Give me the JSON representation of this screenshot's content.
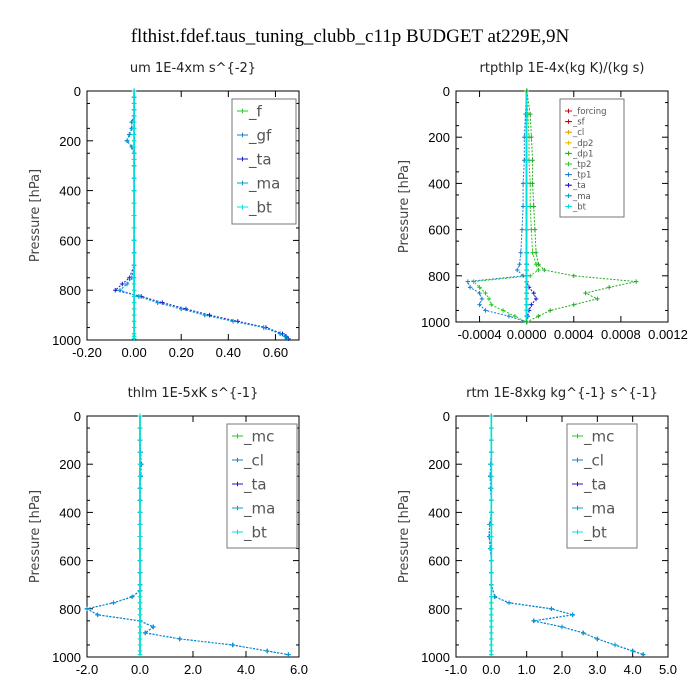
{
  "figure_title": "flthist.fdef.taus_tuning_clubb_c11p  BUDGET at229E,9N",
  "colors": {
    "forcing": "#cc0000",
    "sf": "#cc0000",
    "cl": "#e6a000",
    "dp2": "#e6c300",
    "dp1": "#22aa22",
    "tp2": "#22cc22",
    "tp1": "#1a7fcf",
    "ta": "#1a1ad0",
    "ma": "#00a0d0",
    "bt": "#00e0e0",
    "f": "#22cc22",
    "gf": "#1a7fcf",
    "mc": "#22cc22"
  },
  "chart_data": [
    {
      "type": "line",
      "title": "um   1E-4xm s^{-2}",
      "ylabel": "Pressure [hPa]",
      "xlim": [
        -0.2,
        0.7
      ],
      "ylim": [
        1000,
        0
      ],
      "xticks": [
        -0.2,
        0.0,
        0.2,
        0.4,
        0.6
      ],
      "xtick_labels": [
        "-0.20",
        "0.00",
        "0.20",
        "0.40",
        "0.60"
      ],
      "yticks": [
        0,
        200,
        400,
        600,
        800,
        1000
      ],
      "ytick_labels": [
        "0",
        "200",
        "400",
        "600",
        "800",
        "1000"
      ],
      "legend_location": "top-right",
      "pressure": [
        0,
        25,
        50,
        75,
        100,
        125,
        150,
        175,
        200,
        225,
        250,
        275,
        300,
        350,
        400,
        450,
        500,
        550,
        600,
        650,
        700,
        750,
        775,
        800,
        825,
        850,
        875,
        900,
        925,
        950,
        975,
        985,
        995
      ],
      "series": [
        {
          "name": "_f",
          "key": "f",
          "values": [
            0,
            0,
            0,
            0,
            0,
            0,
            0,
            0,
            0,
            0,
            0,
            0,
            0,
            0,
            0,
            0,
            0,
            0,
            0,
            0,
            0,
            0,
            0,
            0,
            0,
            0,
            0,
            0,
            0,
            0,
            0,
            0,
            0
          ]
        },
        {
          "name": "_gf",
          "key": "gf",
          "values": [
            0.0,
            0.0,
            0.0,
            0.0,
            0.0,
            -0.01,
            -0.01,
            -0.02,
            -0.03,
            -0.01,
            0.0,
            0.0,
            0.0,
            0.0,
            0.0,
            0.0,
            0.0,
            0.0,
            0.0,
            0.0,
            0.0,
            -0.01,
            -0.03,
            -0.06,
            0.02,
            0.1,
            0.2,
            0.3,
            0.42,
            0.55,
            0.62,
            0.64,
            0.65
          ]
        },
        {
          "name": "_ta",
          "key": "ta",
          "values": [
            0.0,
            0.0,
            0.0,
            0.0,
            0.0,
            -0.01,
            -0.01,
            -0.02,
            -0.03,
            -0.01,
            0.0,
            0.0,
            0.0,
            0.0,
            0.0,
            0.0,
            0.0,
            0.0,
            0.0,
            0.0,
            0.0,
            -0.02,
            -0.05,
            -0.08,
            0.03,
            0.12,
            0.22,
            0.32,
            0.44,
            0.56,
            0.63,
            0.645,
            0.655
          ]
        },
        {
          "name": "_ma",
          "key": "ma",
          "values": [
            0.0,
            0.0,
            0.0,
            0.0,
            0.0,
            -0.01,
            -0.01,
            -0.02,
            -0.03,
            -0.01,
            0.0,
            0.0,
            0.0,
            0.0,
            0.0,
            0.0,
            0.0,
            0.0,
            0.0,
            0.0,
            0.0,
            -0.01,
            -0.03,
            -0.06,
            0.02,
            0.1,
            0.2,
            0.3,
            0.42,
            0.55,
            0.62,
            0.64,
            0.65
          ]
        },
        {
          "name": "_bt",
          "key": "bt",
          "values": [
            0,
            0,
            0,
            0,
            0,
            0,
            0,
            0,
            0,
            0,
            0,
            0,
            0,
            0,
            0,
            0,
            0,
            0,
            0,
            0,
            0,
            0,
            0,
            0,
            0,
            0,
            0,
            0,
            0,
            0,
            0,
            0,
            0
          ]
        }
      ]
    },
    {
      "type": "line",
      "title": "rtpthlp   1E-4x(kg K)/(kg s)",
      "ylabel": "Pressure [hPa]",
      "xlim": [
        -0.0006,
        0.0012
      ],
      "ylim": [
        1000,
        0
      ],
      "xticks": [
        -0.0004,
        0.0,
        0.0004,
        0.0008,
        0.0012
      ],
      "xtick_labels": [
        "-0.0004",
        "0.0000",
        "0.0004",
        "0.0008",
        "0.0012"
      ],
      "yticks": [
        0,
        200,
        400,
        600,
        800,
        1000
      ],
      "ytick_labels": [
        "0",
        "200",
        "400",
        "600",
        "800",
        "1000"
      ],
      "legend_location": "top-right",
      "pressure": [
        0,
        100,
        200,
        300,
        400,
        500,
        600,
        700,
        750,
        775,
        800,
        825,
        850,
        875,
        900,
        925,
        950,
        975,
        1000
      ],
      "series": [
        {
          "name": "_forcing",
          "key": "forcing",
          "values": [
            0,
            0,
            0,
            0,
            0,
            0,
            0,
            0,
            0,
            0,
            0,
            0,
            0,
            0,
            0,
            0,
            0,
            0,
            0
          ]
        },
        {
          "name": "_sf",
          "key": "sf",
          "values": [
            0,
            0,
            0,
            0,
            0,
            0,
            0,
            0,
            0,
            0,
            0,
            0,
            0,
            0,
            0,
            0,
            0,
            0,
            0
          ]
        },
        {
          "name": "_cl",
          "key": "cl",
          "values": [
            0,
            0,
            0,
            0,
            0,
            0,
            0,
            0,
            0,
            0,
            0,
            0,
            0,
            0,
            0,
            0,
            0,
            0,
            0
          ]
        },
        {
          "name": "_dp2",
          "key": "dp2",
          "values": [
            0,
            0,
            0,
            0,
            0,
            0,
            0,
            0,
            0,
            0,
            0,
            0,
            0,
            0,
            0,
            0,
            0,
            0,
            0
          ]
        },
        {
          "name": "_dp1",
          "key": "dp1",
          "values": [
            0,
            0,
            0,
            0,
            0,
            0,
            0,
            0,
            0,
            0,
            0,
            0,
            0,
            0,
            0,
            0,
            0,
            0,
            0
          ]
        },
        {
          "name": "_tp2",
          "key": "tp2",
          "values": [
            0.0,
            1e-05,
            2e-05,
            2e-05,
            3e-05,
            3e-05,
            4e-05,
            5e-05,
            8e-05,
            0.0001,
            3e-05,
            -0.00045,
            -0.0004,
            -0.00035,
            -0.00032,
            -0.0003,
            -0.0002,
            -0.0001,
            0.0
          ]
        },
        {
          "name": "_tp1",
          "key": "tp1",
          "values": [
            0.0,
            -1e-05,
            -2e-05,
            -2e-05,
            -3e-05,
            -3e-05,
            -4e-05,
            -5e-05,
            -6e-05,
            -8e-05,
            -3e-05,
            -0.0005,
            -0.00048,
            -0.0004,
            -0.00038,
            -0.0004,
            -0.00035,
            -0.00015,
            0.0
          ]
        },
        {
          "name": "_ta",
          "key": "ta",
          "values": [
            0,
            0,
            0,
            0,
            0,
            0,
            0,
            0,
            0,
            0,
            0,
            0,
            2e-05,
            6e-05,
            8e-05,
            4e-05,
            2e-05,
            1e-05,
            0
          ]
        },
        {
          "name": "_ma",
          "key": "ma",
          "values": [
            0,
            0,
            0,
            0,
            0,
            0,
            0,
            0,
            0,
            0,
            0,
            0,
            0,
            0,
            0,
            0,
            0,
            0,
            0
          ]
        },
        {
          "name": "_bt",
          "key": "bt",
          "values": [
            0,
            0,
            0,
            0,
            0,
            0,
            0,
            0,
            0,
            0,
            0,
            0,
            0,
            0,
            0,
            0,
            0,
            0,
            0
          ]
        },
        {
          "name": "",
          "key": "dp1",
          "values": [
            0.0,
            3e-05,
            4e-05,
            5e-05,
            5e-05,
            6e-05,
            7e-05,
            8e-05,
            0.0001,
            0.00015,
            0.0004,
            0.00093,
            0.0007,
            0.0005,
            0.0006,
            0.0004,
            0.0002,
            0.0001,
            0.0
          ]
        }
      ]
    },
    {
      "type": "line",
      "title": "thlm   1E-5xK s^{-1}",
      "ylabel": "Pressure [hPa]",
      "xlim": [
        -2.0,
        6.0
      ],
      "ylim": [
        1000,
        0
      ],
      "xticks": [
        -2.0,
        0.0,
        2.0,
        4.0,
        6.0
      ],
      "xtick_labels": [
        "-2.0",
        "0.0",
        "2.0",
        "4.0",
        "6.0"
      ],
      "yticks": [
        0,
        200,
        400,
        600,
        800,
        1000
      ],
      "ytick_labels": [
        "0",
        "200",
        "400",
        "600",
        "800",
        "1000"
      ],
      "legend_location": "top-right",
      "pressure": [
        0,
        50,
        100,
        150,
        200,
        250,
        300,
        350,
        400,
        450,
        500,
        550,
        600,
        650,
        700,
        725,
        750,
        775,
        800,
        825,
        850,
        875,
        900,
        925,
        950,
        975,
        990
      ],
      "series": [
        {
          "name": "_mc",
          "key": "mc",
          "values": [
            0,
            0,
            0,
            0,
            0,
            0,
            0,
            0,
            0,
            0,
            0,
            0,
            0,
            0,
            0,
            0,
            0,
            0,
            0,
            0,
            0,
            0,
            0,
            0,
            0,
            0,
            0
          ]
        },
        {
          "name": "_cl",
          "key": "tp1",
          "values": [
            0.0,
            0.0,
            0.0,
            0.02,
            0.05,
            0.03,
            0.0,
            0.0,
            0.0,
            0.0,
            0.0,
            0.0,
            0.0,
            0.0,
            0.0,
            0.0,
            -0.3,
            -1.0,
            -2.0,
            -1.6,
            0.0,
            0.5,
            0.2,
            1.5,
            3.5,
            4.8,
            5.6
          ]
        },
        {
          "name": "_ta",
          "key": "ta",
          "values": [
            0.0,
            0.0,
            0.0,
            0.02,
            0.05,
            0.03,
            0.0,
            0.0,
            0.0,
            0.0,
            0.0,
            0.0,
            0.0,
            0.0,
            0.0,
            0.0,
            -0.3,
            -1.0,
            -2.0,
            -1.6,
            0.0,
            0.5,
            0.2,
            1.5,
            3.5,
            4.8,
            5.6
          ]
        },
        {
          "name": "_ma",
          "key": "ma",
          "values": [
            0.0,
            0.0,
            0.0,
            0.02,
            0.05,
            0.03,
            0.0,
            0.0,
            0.0,
            0.0,
            0.0,
            0.0,
            0.0,
            0.0,
            0.0,
            0.0,
            -0.3,
            -1.0,
            -2.0,
            -1.6,
            0.0,
            0.5,
            0.2,
            1.5,
            3.5,
            4.8,
            5.6
          ]
        },
        {
          "name": "_bt",
          "key": "bt",
          "values": [
            0,
            0,
            0,
            0,
            0,
            0,
            0,
            0,
            0,
            0,
            0,
            0,
            0,
            0,
            0,
            0,
            0,
            0,
            0,
            0,
            0,
            0,
            0,
            0,
            0,
            0,
            0
          ]
        }
      ]
    },
    {
      "type": "line",
      "title": "rtm   1E-8xkg kg^{-1} s^{-1}",
      "ylabel": "Pressure [hPa]",
      "xlim": [
        -1.0,
        5.0
      ],
      "ylim": [
        1000,
        0
      ],
      "xticks": [
        -1.0,
        0.0,
        1.0,
        2.0,
        3.0,
        4.0,
        5.0
      ],
      "xtick_labels": [
        "-1.0",
        "0.0",
        "1.0",
        "2.0",
        "3.0",
        "4.0",
        "5.0"
      ],
      "yticks": [
        0,
        200,
        400,
        600,
        800,
        1000
      ],
      "ytick_labels": [
        "0",
        "200",
        "400",
        "600",
        "800",
        "1000"
      ],
      "legend_location": "top-right",
      "pressure": [
        0,
        50,
        100,
        150,
        200,
        250,
        300,
        350,
        400,
        450,
        500,
        550,
        600,
        650,
        700,
        750,
        775,
        800,
        825,
        850,
        875,
        900,
        925,
        950,
        975,
        990
      ],
      "series": [
        {
          "name": "_mc",
          "key": "mc",
          "values": [
            0,
            0,
            0,
            0,
            0,
            0,
            0,
            0,
            0,
            0,
            0,
            0,
            0,
            0,
            0,
            0,
            0,
            0,
            0,
            0,
            0,
            0,
            0,
            0,
            0,
            0
          ]
        },
        {
          "name": "_cl",
          "key": "tp1",
          "values": [
            0.0,
            0.0,
            0.0,
            0.0,
            -0.02,
            -0.03,
            -0.02,
            0.0,
            0.0,
            -0.05,
            -0.06,
            -0.03,
            0.0,
            0.0,
            0.0,
            0.1,
            0.5,
            1.7,
            2.3,
            1.2,
            2.0,
            2.6,
            3.0,
            3.5,
            4.0,
            4.3
          ]
        },
        {
          "name": "_ta",
          "key": "ta",
          "values": [
            0.0,
            0.0,
            0.0,
            0.0,
            -0.02,
            -0.03,
            -0.02,
            0.0,
            0.0,
            -0.05,
            -0.06,
            -0.03,
            0.0,
            0.0,
            0.0,
            0.1,
            0.5,
            1.7,
            2.3,
            1.2,
            2.0,
            2.6,
            3.0,
            3.5,
            4.0,
            4.3
          ]
        },
        {
          "name": "_ma",
          "key": "ma",
          "values": [
            0.0,
            0.0,
            0.0,
            0.0,
            -0.02,
            -0.03,
            -0.02,
            0.0,
            0.0,
            -0.05,
            -0.06,
            -0.03,
            0.0,
            0.0,
            0.0,
            0.1,
            0.5,
            1.7,
            2.3,
            1.2,
            2.0,
            2.6,
            3.0,
            3.5,
            4.0,
            4.3
          ]
        },
        {
          "name": "_bt",
          "key": "bt",
          "values": [
            0,
            0,
            0,
            0,
            0,
            0,
            0,
            0,
            0,
            0,
            0,
            0,
            0,
            0,
            0,
            0,
            0,
            0,
            0,
            0,
            0,
            0,
            0,
            0,
            0,
            0
          ]
        }
      ]
    }
  ]
}
